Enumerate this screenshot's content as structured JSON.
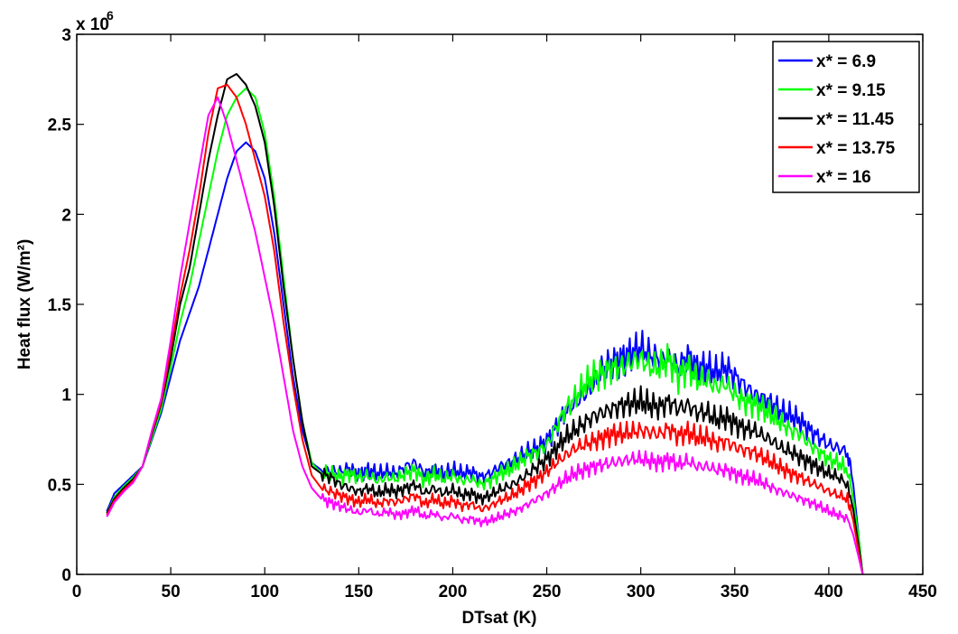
{
  "chart_data": {
    "type": "line",
    "xlabel": "DTsat (K)",
    "ylabel": "Heat flux (W/m²)",
    "y_exponent_base": "x 10",
    "y_exponent_power": "6",
    "xlim": [
      0,
      450
    ],
    "ylim": [
      0,
      3000000
    ],
    "xticks": [
      0,
      50,
      100,
      150,
      200,
      250,
      300,
      350,
      400,
      450
    ],
    "yticks": [
      0,
      500000,
      1000000,
      1500000,
      2000000,
      2500000,
      3000000
    ],
    "ytick_labels": [
      "0",
      "0.5",
      "1",
      "1.5",
      "2",
      "2.5",
      "3"
    ],
    "grid": false,
    "legend_position": "top-right",
    "series": [
      {
        "name": "x* = 6.9",
        "color": "#0000ff",
        "x": [
          16,
          20,
          25,
          30,
          35,
          40,
          45,
          50,
          55,
          60,
          65,
          70,
          75,
          80,
          85,
          90,
          95,
          100,
          105,
          110,
          115,
          120,
          125,
          130,
          135,
          140,
          145,
          150,
          155,
          160,
          165,
          170,
          175,
          180,
          185,
          190,
          195,
          200,
          205,
          210,
          215,
          220,
          225,
          230,
          235,
          240,
          245,
          250,
          255,
          260,
          265,
          270,
          275,
          280,
          285,
          290,
          295,
          300,
          305,
          310,
          315,
          320,
          325,
          330,
          335,
          340,
          345,
          350,
          355,
          360,
          365,
          370,
          375,
          380,
          385,
          390,
          395,
          400,
          405,
          410,
          413,
          416,
          418
        ],
        "y": [
          350000,
          450000,
          500000,
          550000,
          600000,
          750000,
          900000,
          1100000,
          1300000,
          1450000,
          1600000,
          1800000,
          2000000,
          2200000,
          2350000,
          2400000,
          2350000,
          2200000,
          1900000,
          1500000,
          1100000,
          800000,
          620000,
          580000,
          580000,
          570000,
          590000,
          560000,
          580000,
          560000,
          570000,
          560000,
          600000,
          620000,
          560000,
          590000,
          560000,
          580000,
          560000,
          570000,
          540000,
          560000,
          600000,
          620000,
          650000,
          680000,
          700000,
          740000,
          820000,
          900000,
          950000,
          1000000,
          1050000,
          1150000,
          1180000,
          1200000,
          1230000,
          1260000,
          1220000,
          1200000,
          1200000,
          1150000,
          1220000,
          1150000,
          1150000,
          1120000,
          1150000,
          1100000,
          1050000,
          1000000,
          980000,
          950000,
          900000,
          880000,
          850000,
          800000,
          760000,
          720000,
          700000,
          680000,
          500000,
          200000,
          0
        ]
      },
      {
        "name": "x* = 9.15",
        "color": "#00ff00",
        "x": [
          16,
          20,
          25,
          30,
          35,
          40,
          45,
          50,
          55,
          60,
          65,
          70,
          75,
          80,
          85,
          90,
          95,
          100,
          105,
          110,
          115,
          120,
          125,
          130,
          135,
          140,
          145,
          150,
          155,
          160,
          165,
          170,
          175,
          180,
          185,
          190,
          195,
          200,
          205,
          210,
          215,
          220,
          225,
          230,
          235,
          240,
          245,
          250,
          255,
          260,
          265,
          270,
          275,
          280,
          285,
          290,
          295,
          300,
          305,
          310,
          315,
          320,
          325,
          330,
          335,
          340,
          345,
          350,
          355,
          360,
          365,
          370,
          375,
          380,
          385,
          390,
          395,
          400,
          405,
          410,
          413,
          416,
          418
        ],
        "y": [
          340000,
          430000,
          490000,
          540000,
          600000,
          760000,
          920000,
          1150000,
          1400000,
          1600000,
          1850000,
          2100000,
          2350000,
          2550000,
          2650000,
          2700000,
          2650000,
          2450000,
          2100000,
          1650000,
          1200000,
          850000,
          620000,
          560000,
          560000,
          540000,
          560000,
          540000,
          550000,
          520000,
          540000,
          530000,
          560000,
          580000,
          520000,
          560000,
          530000,
          550000,
          520000,
          530000,
          500000,
          520000,
          560000,
          580000,
          620000,
          660000,
          680000,
          720000,
          820000,
          920000,
          980000,
          1050000,
          1100000,
          1120000,
          1150000,
          1150000,
          1180000,
          1200000,
          1150000,
          1150000,
          1200000,
          1100000,
          1150000,
          1080000,
          1080000,
          1040000,
          1060000,
          1000000,
          960000,
          950000,
          920000,
          880000,
          840000,
          800000,
          780000,
          720000,
          680000,
          640000,
          620000,
          580000,
          420000,
          200000,
          0
        ]
      },
      {
        "name": "x* = 11.45",
        "color": "#000000",
        "x": [
          16,
          20,
          25,
          30,
          35,
          40,
          45,
          50,
          55,
          60,
          65,
          70,
          75,
          80,
          85,
          90,
          95,
          100,
          105,
          110,
          115,
          120,
          125,
          130,
          135,
          140,
          145,
          150,
          155,
          160,
          165,
          170,
          175,
          180,
          185,
          190,
          195,
          200,
          205,
          210,
          215,
          220,
          225,
          230,
          235,
          240,
          245,
          250,
          255,
          260,
          265,
          270,
          275,
          280,
          285,
          290,
          295,
          300,
          305,
          310,
          315,
          320,
          325,
          330,
          335,
          340,
          345,
          350,
          355,
          360,
          365,
          370,
          375,
          380,
          385,
          390,
          395,
          400,
          405,
          410,
          413,
          416,
          418
        ],
        "y": [
          340000,
          420000,
          480000,
          530000,
          600000,
          780000,
          950000,
          1200000,
          1500000,
          1700000,
          2000000,
          2300000,
          2550000,
          2750000,
          2780000,
          2720000,
          2600000,
          2400000,
          2050000,
          1600000,
          1200000,
          850000,
          600000,
          560000,
          540000,
          500000,
          480000,
          460000,
          480000,
          450000,
          470000,
          460000,
          480000,
          500000,
          450000,
          480000,
          450000,
          470000,
          440000,
          450000,
          420000,
          440000,
          470000,
          490000,
          520000,
          560000,
          600000,
          640000,
          700000,
          760000,
          800000,
          840000,
          880000,
          900000,
          920000,
          940000,
          950000,
          960000,
          940000,
          930000,
          960000,
          920000,
          940000,
          900000,
          900000,
          860000,
          870000,
          840000,
          810000,
          800000,
          770000,
          740000,
          700000,
          680000,
          650000,
          620000,
          590000,
          560000,
          540000,
          500000,
          360000,
          150000,
          0
        ]
      },
      {
        "name": "x* = 13.75",
        "color": "#ff0000",
        "x": [
          16,
          20,
          25,
          30,
          35,
          40,
          45,
          50,
          55,
          60,
          65,
          70,
          75,
          80,
          85,
          90,
          95,
          100,
          105,
          110,
          115,
          120,
          125,
          130,
          135,
          140,
          145,
          150,
          155,
          160,
          165,
          170,
          175,
          180,
          185,
          190,
          195,
          200,
          205,
          210,
          215,
          220,
          225,
          230,
          235,
          240,
          245,
          250,
          255,
          260,
          265,
          270,
          275,
          280,
          285,
          290,
          295,
          300,
          305,
          310,
          315,
          320,
          325,
          330,
          335,
          340,
          345,
          350,
          355,
          360,
          365,
          370,
          375,
          380,
          385,
          390,
          395,
          400,
          405,
          410,
          413,
          416,
          418
        ],
        "y": [
          330000,
          410000,
          470000,
          520000,
          600000,
          790000,
          960000,
          1250000,
          1550000,
          1800000,
          2100000,
          2450000,
          2700000,
          2720000,
          2650000,
          2500000,
          2300000,
          2100000,
          1800000,
          1400000,
          1050000,
          750000,
          550000,
          480000,
          460000,
          440000,
          420000,
          400000,
          420000,
          390000,
          410000,
          400000,
          420000,
          440000,
          390000,
          420000,
          390000,
          410000,
          380000,
          390000,
          360000,
          380000,
          410000,
          430000,
          460000,
          500000,
          530000,
          570000,
          620000,
          660000,
          700000,
          720000,
          740000,
          760000,
          780000,
          780000,
          790000,
          800000,
          790000,
          780000,
          810000,
          770000,
          790000,
          760000,
          760000,
          730000,
          740000,
          710000,
          690000,
          680000,
          650000,
          620000,
          590000,
          560000,
          540000,
          510000,
          490000,
          460000,
          440000,
          420000,
          300000,
          120000,
          0
        ]
      },
      {
        "name": "x* = 16",
        "color": "#ff00ff",
        "x": [
          16,
          20,
          25,
          30,
          35,
          40,
          45,
          50,
          55,
          60,
          65,
          70,
          75,
          80,
          85,
          90,
          95,
          100,
          105,
          110,
          115,
          120,
          125,
          130,
          135,
          140,
          145,
          150,
          155,
          160,
          165,
          170,
          175,
          180,
          185,
          190,
          195,
          200,
          205,
          210,
          215,
          220,
          225,
          230,
          235,
          240,
          245,
          250,
          255,
          260,
          265,
          270,
          275,
          280,
          285,
          290,
          295,
          300,
          305,
          310,
          315,
          320,
          325,
          330,
          335,
          340,
          345,
          350,
          355,
          360,
          365,
          370,
          375,
          380,
          385,
          390,
          395,
          400,
          405,
          410,
          413,
          416,
          418
        ],
        "y": [
          320000,
          400000,
          460000,
          510000,
          600000,
          800000,
          980000,
          1300000,
          1650000,
          1950000,
          2250000,
          2550000,
          2650000,
          2500000,
          2300000,
          2100000,
          1900000,
          1650000,
          1400000,
          1100000,
          800000,
          600000,
          480000,
          420000,
          400000,
          380000,
          360000,
          340000,
          360000,
          330000,
          350000,
          330000,
          340000,
          360000,
          320000,
          340000,
          310000,
          330000,
          300000,
          310000,
          290000,
          300000,
          320000,
          340000,
          360000,
          390000,
          420000,
          450000,
          490000,
          530000,
          560000,
          580000,
          600000,
          610000,
          620000,
          630000,
          640000,
          640000,
          630000,
          620000,
          640000,
          610000,
          630000,
          600000,
          600000,
          580000,
          580000,
          560000,
          540000,
          530000,
          510000,
          480000,
          460000,
          440000,
          420000,
          400000,
          380000,
          350000,
          330000,
          310000,
          220000,
          90000,
          0
        ]
      }
    ]
  }
}
